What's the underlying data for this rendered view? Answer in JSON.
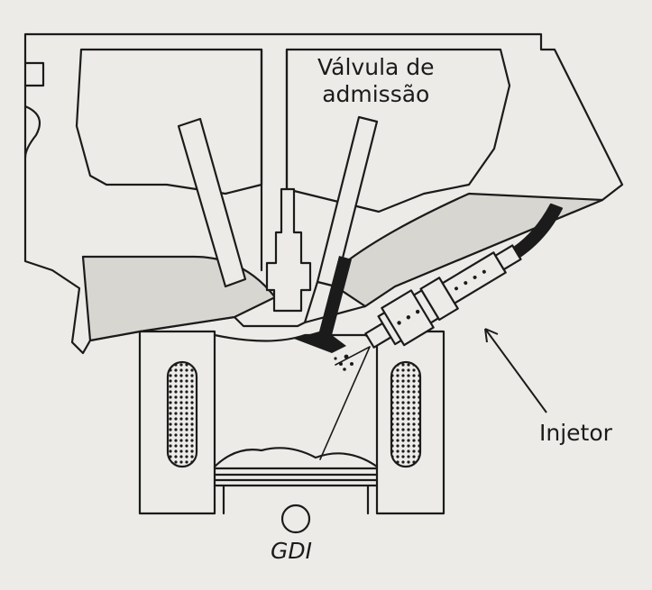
{
  "labels": {
    "valve_line1": "Válvula de",
    "valve_line2": "admissão",
    "injector": "Injetor",
    "gdi": "GDI"
  },
  "colors": {
    "paper": "#ecebe8",
    "line": "#1b1b1b",
    "shade": "#d8d6d1"
  }
}
